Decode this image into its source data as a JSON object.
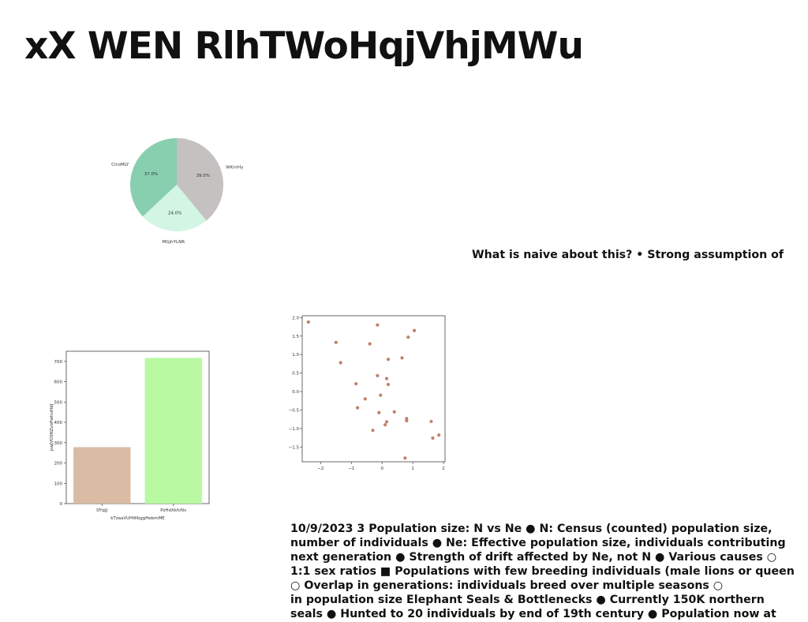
{
  "title": "xX WEN RlhTWoHqjVhjMWu",
  "callout": "What is naive about this? • Strong assumption of",
  "notes": [
    "10/9/2023 3 Population size: N vs Ne ● N: Census (counted) population size,",
    "number of individuals ● Ne: Effective population size, individuals contributing",
    "next generation ● Strength of drift affected by Ne, not N ● Various causes ○",
    "1:1 sex ratios ■ Populations with few breeding individuals (male lions or queen",
    "○ Overlap in generations: individuals breed over multiple seasons ○",
    "in population size Elephant Seals & Bottlenecks ● Currently 150K northern",
    "seals ● Hunted to 20 individuals by end of 19th century ● Population now at"
  ],
  "chart_data": [
    {
      "type": "pie",
      "labels": [
        "ClcoMLY",
        "MGjhYLNR",
        "WKnrHy"
      ],
      "values": [
        37.0,
        24.0,
        39.0
      ],
      "pct_labels": [
        "37.0%",
        "24.0%",
        "39.0%"
      ],
      "colors": [
        "#88cfb0",
        "#d2f5e4",
        "#c4c1c0"
      ],
      "start_angle_deg": 90,
      "direction": "counterclockwise"
    },
    {
      "type": "bar",
      "categories": [
        "DYpJJ",
        "PzHdXkfcNv"
      ],
      "values": [
        278,
        717
      ],
      "colors": [
        "#d9bca3",
        "#b8f9a2"
      ],
      "xlabel": "kTzaaVUHWbggHebmME",
      "ylabel": "pwJVOIlNZvoPwhuHdJ",
      "ylim": [
        0,
        750
      ],
      "yticks": [
        0,
        100,
        200,
        300,
        400,
        500,
        600,
        700
      ]
    },
    {
      "type": "scatter",
      "color": "#c0806a",
      "x": [
        -2.4,
        -0.15,
        1.05,
        -1.5,
        -0.4,
        0.85,
        -1.35,
        0.2,
        0.65,
        -0.15,
        0.15,
        -0.85,
        0.2,
        -0.05,
        -0.55,
        -0.8,
        0.4,
        -0.1,
        1.6,
        0.8,
        0.15,
        0.8,
        0.1,
        -0.3,
        1.85,
        1.65,
        0.75
      ],
      "y": [
        1.88,
        1.8,
        1.65,
        1.33,
        1.29,
        1.47,
        0.78,
        0.87,
        0.91,
        0.43,
        0.35,
        0.21,
        0.19,
        -0.1,
        -0.2,
        -0.44,
        -0.55,
        -0.57,
        -0.81,
        -0.73,
        -0.82,
        -0.79,
        -0.9,
        -1.05,
        -1.18,
        -1.26,
        -1.8
      ],
      "xlim": [
        -2.6,
        2.05
      ],
      "ylim": [
        -1.9,
        2.05
      ],
      "xticks": [
        -2,
        -1,
        0,
        1,
        2
      ],
      "yticks": [
        -1.5,
        -1.0,
        -0.5,
        0.0,
        0.5,
        1.0,
        1.5,
        2.0
      ],
      "ytick_labels": [
        "−1.5",
        "−1.0",
        "−0.5",
        "0.0",
        "0.5",
        "1.0",
        "1.5",
        "2.0"
      ],
      "xtick_labels": [
        "−2",
        "−1",
        "0",
        "1",
        "2"
      ]
    }
  ]
}
